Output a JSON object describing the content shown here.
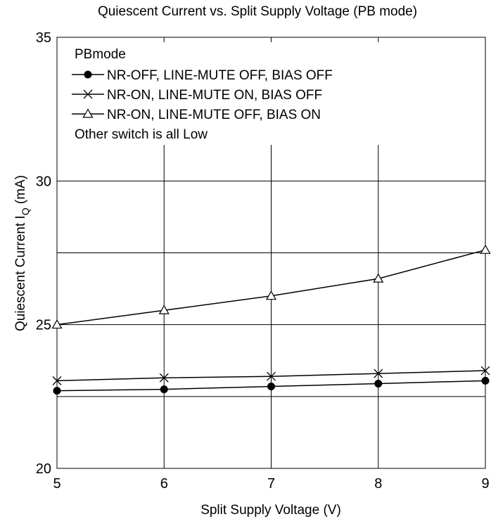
{
  "chart_data": {
    "type": "line",
    "title": "Quiescent Current vs. Split Supply Voltage (PB mode)",
    "xlabel": "Split Supply Voltage  (V)",
    "ylabel_main": "Quiescent Current  I",
    "ylabel_sub": "Q",
    "ylabel_unit": "  (mA)",
    "xlim": [
      5,
      9
    ],
    "ylim": [
      20,
      35
    ],
    "x_ticks": [
      "5",
      "6",
      "7",
      "8",
      "9"
    ],
    "y_ticks": [
      "20",
      "25",
      "30",
      "35"
    ],
    "gridlines_y": [
      22.5,
      25,
      27.5,
      30
    ],
    "gridlines_x": [
      6,
      7,
      8
    ],
    "legend": {
      "header": "PBmode",
      "footer": "Other switch is all  Low",
      "placement": "top-left"
    },
    "x": [
      5,
      6,
      7,
      8,
      9
    ],
    "series": [
      {
        "name": "NR-OFF, LINE-MUTE OFF, BIAS OFF",
        "marker": "circle",
        "values": [
          22.7,
          22.75,
          22.85,
          22.95,
          23.05
        ]
      },
      {
        "name": "NR-ON, LINE-MUTE ON, BIAS OFF",
        "marker": "x",
        "values": [
          23.05,
          23.15,
          23.2,
          23.3,
          23.4
        ]
      },
      {
        "name": "NR-ON, LINE-MUTE OFF, BIAS ON",
        "marker": "triangle",
        "values": [
          25.0,
          25.5,
          26.0,
          26.6,
          27.6
        ]
      }
    ]
  }
}
